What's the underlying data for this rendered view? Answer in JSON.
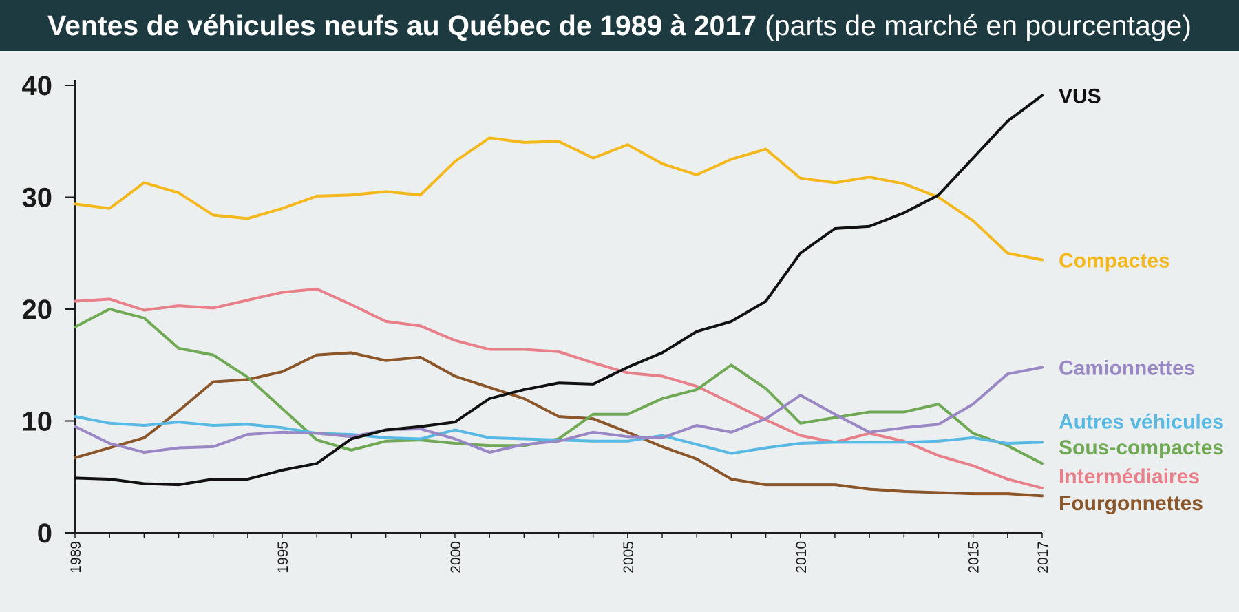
{
  "chart_data": {
    "type": "line",
    "title": "Ventes de véhicules neufs au Québec de 1989 à 2017",
    "subtitle": "(parts de marché en pourcentage)",
    "xlabel": "",
    "ylabel": "",
    "xlim": [
      1989,
      2017
    ],
    "ylim": [
      0,
      40
    ],
    "yticks": [
      {
        "value": 0,
        "label": "0"
      },
      {
        "value": 10,
        "label": "10"
      },
      {
        "value": 20,
        "label": "20"
      },
      {
        "value": 30,
        "label": "30"
      },
      {
        "value": 40,
        "label": "40"
      }
    ],
    "xticks": [
      {
        "value": 1989,
        "label": "1989"
      },
      {
        "value": 1995,
        "label": "1995"
      },
      {
        "value": 2000,
        "label": "2000"
      },
      {
        "value": 2005,
        "label": "2005"
      },
      {
        "value": 2010,
        "label": "2010"
      },
      {
        "value": 2015,
        "label": "2015"
      },
      {
        "value": 2017,
        "label": "2017"
      }
    ],
    "grid": false,
    "legend": "direct labels at right end of lines",
    "x": [
      1989,
      1990,
      1991,
      1992,
      1993,
      1994,
      1995,
      1996,
      1997,
      1998,
      1999,
      2000,
      2001,
      2002,
      2003,
      2004,
      2005,
      2006,
      2007,
      2008,
      2009,
      2010,
      2011,
      2012,
      2013,
      2014,
      2015,
      2016,
      2017
    ],
    "series": [
      {
        "name": "Fourgonnettes",
        "color": "#8b5629",
        "values": [
          6.7,
          7.6,
          8.5,
          10.9,
          13.5,
          13.7,
          14.4,
          15.9,
          16.1,
          15.4,
          15.7,
          14.0,
          13.0,
          12.0,
          10.4,
          10.2,
          9.0,
          7.7,
          6.6,
          4.8,
          4.3,
          4.3,
          4.3,
          3.9,
          3.7,
          3.6,
          3.5,
          3.5,
          3.3
        ]
      },
      {
        "name": "Intermédiaires",
        "color": "#e8808a",
        "values": [
          20.7,
          20.9,
          19.9,
          20.3,
          20.1,
          20.8,
          21.5,
          21.8,
          20.4,
          18.9,
          18.5,
          17.2,
          16.4,
          16.4,
          16.2,
          15.2,
          14.3,
          14.0,
          13.1,
          11.6,
          10.1,
          8.7,
          8.1,
          8.9,
          8.2,
          6.9,
          6.0,
          4.8,
          4.0
        ]
      },
      {
        "name": "Sous-compactes",
        "color": "#6fa954",
        "values": [
          18.4,
          20.0,
          19.2,
          16.5,
          15.9,
          13.9,
          11.1,
          8.3,
          7.4,
          8.2,
          8.3,
          8.0,
          7.8,
          7.8,
          8.4,
          10.6,
          10.6,
          12.0,
          12.8,
          15.0,
          12.9,
          9.8,
          10.3,
          10.8,
          10.8,
          11.5,
          8.9,
          7.8,
          6.2
        ]
      },
      {
        "name": "Autres véhicules",
        "color": "#57b9e4",
        "values": [
          10.4,
          9.8,
          9.6,
          9.9,
          9.6,
          9.7,
          9.4,
          8.9,
          8.8,
          8.5,
          8.4,
          9.2,
          8.5,
          8.4,
          8.3,
          8.2,
          8.2,
          8.7,
          7.9,
          7.1,
          7.6,
          8.0,
          8.1,
          8.1,
          8.1,
          8.2,
          8.5,
          8.0,
          8.1
        ]
      },
      {
        "name": "Camionnettes",
        "color": "#9a87c5",
        "values": [
          9.5,
          8.0,
          7.2,
          7.6,
          7.7,
          8.8,
          9.0,
          8.9,
          8.6,
          9.2,
          9.3,
          8.4,
          7.2,
          7.9,
          8.2,
          9.0,
          8.6,
          8.5,
          9.6,
          9.0,
          10.2,
          12.3,
          10.6,
          9.0,
          9.4,
          9.7,
          11.5,
          14.2,
          14.8
        ]
      },
      {
        "name": "Compactes",
        "color": "#f4b81c",
        "values": [
          29.4,
          29.0,
          31.3,
          30.4,
          28.4,
          28.1,
          29.0,
          30.1,
          30.2,
          30.5,
          30.2,
          33.2,
          35.3,
          34.9,
          35.0,
          33.5,
          34.7,
          33.0,
          32.0,
          33.4,
          34.3,
          31.7,
          31.3,
          31.8,
          31.2,
          30.0,
          27.9,
          25.0,
          24.4
        ]
      },
      {
        "name": "VUS",
        "color": "#111111",
        "values": [
          4.9,
          4.8,
          4.4,
          4.3,
          4.8,
          4.8,
          5.6,
          6.2,
          8.4,
          9.2,
          9.5,
          9.9,
          12.0,
          12.8,
          13.4,
          13.3,
          14.8,
          16.1,
          18.0,
          18.9,
          20.7,
          25.0,
          27.2,
          27.4,
          28.6,
          30.2,
          33.5,
          36.8,
          39.1
        ]
      }
    ]
  }
}
